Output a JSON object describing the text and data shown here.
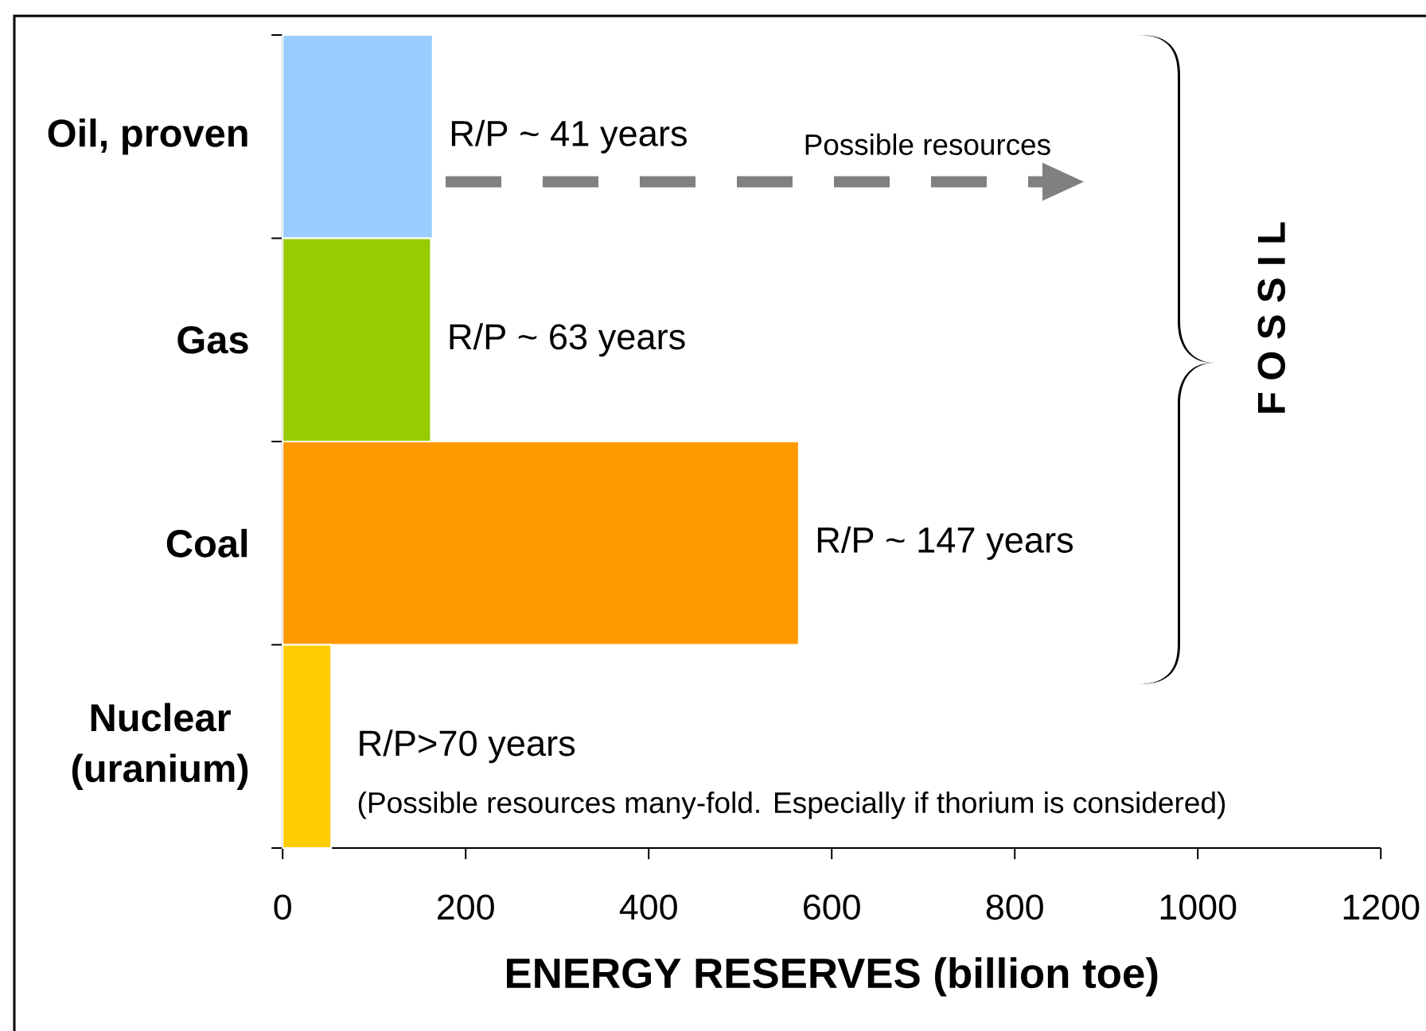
{
  "chart_data": {
    "type": "bar",
    "orientation": "horizontal",
    "categories": [
      "Oil, proven",
      "Gas",
      "Coal",
      "Nuclear (uranium)"
    ],
    "values": [
      164,
      162,
      564,
      53
    ],
    "colors": [
      "#99ccff",
      "#99cc00",
      "#ff9900",
      "#ffcc00"
    ],
    "xlabel": "ENERGY RESERVES (billion toe)",
    "xlim": [
      0,
      1200
    ],
    "xticks": [
      0,
      200,
      400,
      600,
      800,
      1000,
      1200
    ],
    "annotations": [
      {
        "text": "R/P ~ 41 years",
        "x": 164,
        "y": "Oil, proven"
      },
      {
        "text": "R/P ~ 63 years",
        "x": 162,
        "y": "Gas"
      },
      {
        "text": "R/P ~ 147 years",
        "x": 564,
        "y": "Coal"
      },
      {
        "text": "R/P>70 years",
        "x": 53,
        "y": "Nuclear (uranium)"
      },
      {
        "text": "(Possible resources many-fold. Especially if thorium is considered)",
        "x": 53,
        "y": "Nuclear (uranium)"
      },
      "Possible resources",
      "F O S S I L"
    ]
  }
}
